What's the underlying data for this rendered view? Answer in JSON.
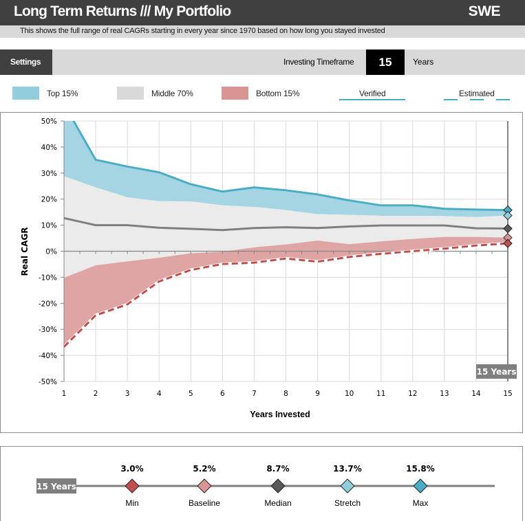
{
  "header": {
    "title": "Long Term Returns /// My Portfolio",
    "region": "SWE",
    "subtitle": "This shows the full range of real CAGRs starting in every year since 1970 based on how long you stayed invested"
  },
  "settings": {
    "button_label": "Settings",
    "timeframe_label": "Investing Timeframe",
    "timeframe_value": "15",
    "timeframe_unit": "Years"
  },
  "legend": {
    "top": "Top 15%",
    "middle": "Middle 70%",
    "bottom": "Bottom 15%",
    "verified": "Verified",
    "estimated": "Estimated"
  },
  "colors": {
    "top_band": "#a5d5e3",
    "middle_band": "#ebebeb",
    "bottom_band": "#dfa4a4",
    "max_line": "#4bacc6",
    "median_line": "#7f7f7f",
    "min_line": "#c0504d",
    "header_bg": "#404040",
    "marker_min": "#c0504d",
    "marker_baseline": "#d99594",
    "marker_median": "#595959",
    "marker_stretch": "#92cddc",
    "marker_max": "#4bacc6"
  },
  "chart_data": {
    "type": "area",
    "title": "",
    "xlabel": "Years Invested",
    "ylabel": "Real CAGR",
    "x": [
      1,
      2,
      3,
      4,
      5,
      6,
      7,
      8,
      9,
      10,
      11,
      12,
      13,
      14,
      15
    ],
    "xlim": [
      1,
      15
    ],
    "ylim": [
      -50,
      50
    ],
    "y_ticks": [
      50,
      40,
      30,
      20,
      10,
      0,
      -10,
      -20,
      -30,
      -40,
      -50
    ],
    "y_tick_labels": [
      "50%",
      "40%",
      "30%",
      "20%",
      "10%",
      "0%",
      "-10%",
      "-20%",
      "-30%",
      "-40%",
      "-50%"
    ],
    "x_tick_labels": [
      "1",
      "2",
      "3",
      "4",
      "5",
      "6",
      "7",
      "8",
      "9",
      "10",
      "11",
      "12",
      "13",
      "14",
      "15"
    ],
    "grid": true,
    "series": [
      {
        "name": "Max",
        "values": [
          56.5,
          35.1,
          32.5,
          30.3,
          25.7,
          22.9,
          24.5,
          23.4,
          21.8,
          19.5,
          17.6,
          17.6,
          16.3,
          16.0,
          15.8
        ]
      },
      {
        "name": "Top of Middle 70% (Stretch)",
        "values": [
          28.8,
          24.5,
          20.7,
          19.2,
          19.1,
          17.6,
          17.0,
          15.8,
          14.2,
          14.0,
          13.6,
          13.6,
          13.5,
          13.1,
          13.7
        ]
      },
      {
        "name": "Median",
        "values": [
          12.7,
          10.0,
          10.0,
          9.0,
          8.6,
          8.1,
          8.9,
          9.2,
          8.9,
          9.5,
          9.9,
          9.9,
          9.9,
          8.8,
          8.7
        ]
      },
      {
        "name": "Bottom of Middle 70% (Baseline)",
        "values": [
          -10.2,
          -5.4,
          -3.9,
          -2.5,
          -0.8,
          -0.2,
          1.5,
          2.6,
          4.1,
          2.7,
          3.8,
          4.7,
          5.5,
          5.5,
          5.2
        ]
      },
      {
        "name": "Min",
        "values": [
          -36.7,
          -24.6,
          -20.4,
          -11.6,
          -7.2,
          -4.9,
          -4.4,
          -2.8,
          -4.0,
          -2.2,
          -1.0,
          0.0,
          1.0,
          2.2,
          3.0
        ]
      }
    ],
    "selected_marker": {
      "x": 15,
      "label": "15 Years"
    },
    "annotations": [
      "15 Years"
    ]
  },
  "summary": {
    "timeframe_tag": "15 Years",
    "markers": [
      {
        "name": "Min",
        "value": "3.0%"
      },
      {
        "name": "Baseline",
        "value": "5.2%"
      },
      {
        "name": "Median",
        "value": "8.7%"
      },
      {
        "name": "Stretch",
        "value": "13.7%"
      },
      {
        "name": "Max",
        "value": "15.8%"
      }
    ]
  }
}
